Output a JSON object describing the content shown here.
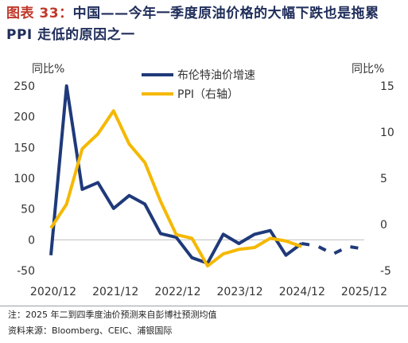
{
  "header": {
    "figure_no": "图表 33：",
    "title": "中国——今年一季度原油价格的大幅下跌也是拖累 PPI 走低的原因之一"
  },
  "footer": {
    "note": "注：2025 年二到四季度油价预测来自彭博社预测均值",
    "source": "资料来源：Bloomberg、CEIC、浦银国际"
  },
  "chart_data": {
    "type": "line",
    "x_tick_labels": [
      "2020/12",
      "2021/12",
      "2022/12",
      "2023/12",
      "2024/12",
      "2025/12"
    ],
    "y_left": {
      "label": "同比%",
      "ylim": [
        -50,
        250
      ],
      "ticks": [
        250,
        200,
        150,
        100,
        50,
        0,
        -50
      ]
    },
    "y_right": {
      "label": "同比%",
      "ylim": [
        -5,
        15
      ],
      "ticks": [
        15,
        10,
        5,
        0,
        -5
      ]
    },
    "grid": false,
    "legend_position": "top-center",
    "x_range": [
      0,
      20
    ],
    "series": [
      {
        "name": "布伦特油价增速",
        "axis": "left",
        "color": "#1f3a7a",
        "x": [
          0,
          1,
          2,
          3,
          4,
          5,
          6,
          7,
          8,
          9,
          10,
          11,
          12,
          13,
          14,
          15,
          16
        ],
        "y": [
          -25,
          250,
          82,
          93,
          51,
          72,
          58,
          10,
          4,
          -29,
          -38,
          9,
          -6,
          9,
          15,
          -25,
          -6
        ]
      },
      {
        "name": "布伦特油价增速预测",
        "axis": "left",
        "color": "#1f3a7a",
        "dashed": true,
        "x": [
          16,
          17,
          18,
          19,
          20
        ],
        "y": [
          -6,
          -10,
          -23,
          -11,
          -15
        ]
      },
      {
        "name": "PPI（右轴）",
        "axis": "right",
        "color": "#f5b800",
        "x": [
          0,
          1,
          2,
          3,
          4,
          5,
          6,
          7,
          8,
          9,
          10,
          11,
          12,
          13,
          14,
          15,
          16
        ],
        "y": [
          -0.4,
          2.2,
          8.2,
          9.8,
          12.3,
          8.7,
          6.7,
          2.5,
          -1.1,
          -1.5,
          -4.5,
          -3.2,
          -2.7,
          -2.5,
          -1.5,
          -1.8,
          -2.4
        ]
      }
    ]
  }
}
